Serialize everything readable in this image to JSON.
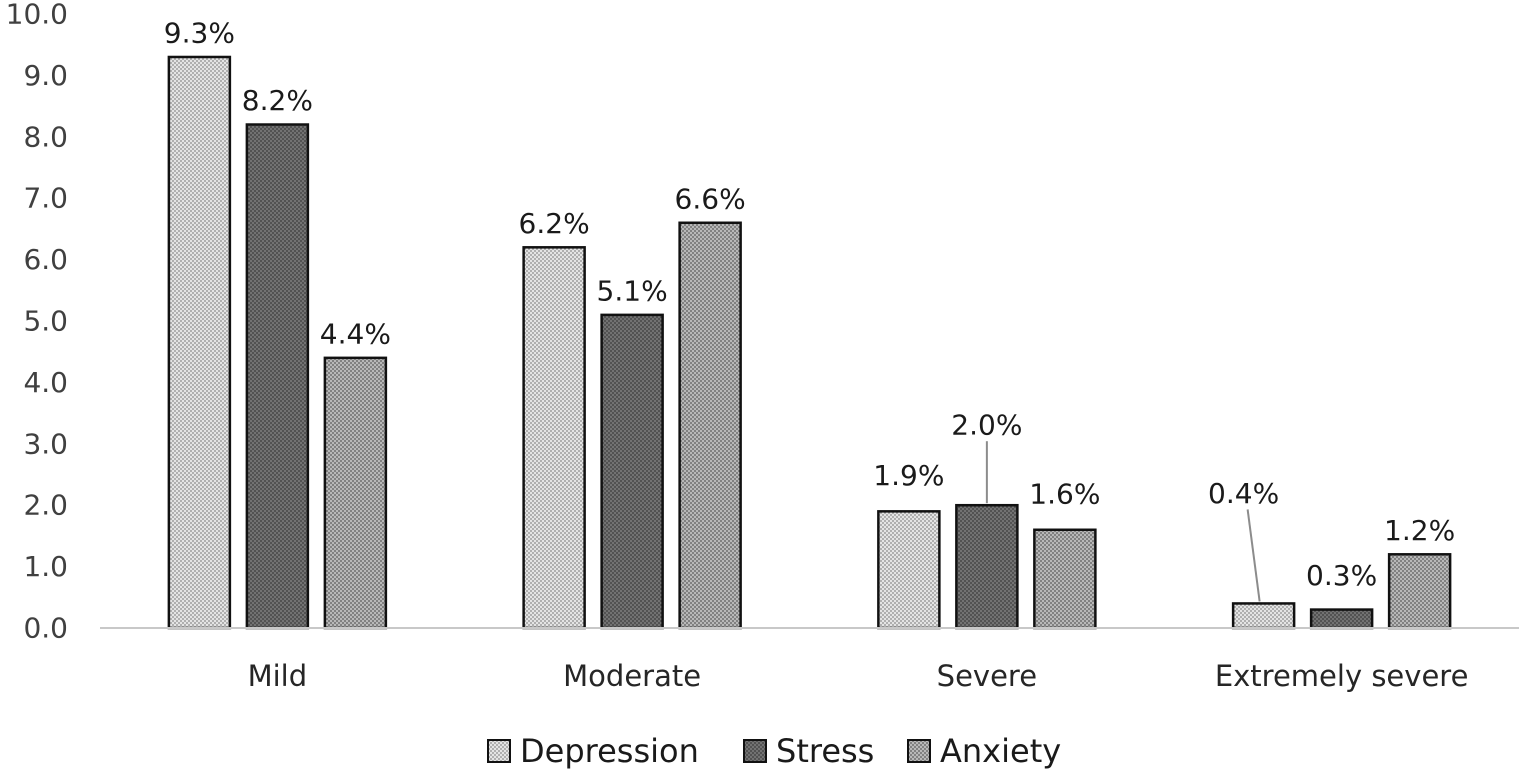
{
  "chart_data": {
    "type": "bar",
    "title": "",
    "xlabel": "",
    "ylabel": "",
    "ylim": [
      0,
      10
    ],
    "yticks": [
      "0.0",
      "1.0",
      "2.0",
      "3.0",
      "4.0",
      "5.0",
      "6.0",
      "7.0",
      "8.0",
      "9.0",
      "10.0"
    ],
    "categories": [
      "Mild",
      "Moderate",
      "Severe",
      "Extremely severe"
    ],
    "series": [
      {
        "name": "Depression",
        "values": [
          9.3,
          6.2,
          1.9,
          0.4
        ],
        "labels": [
          "9.3%",
          "6.2%",
          "1.9%",
          "0.4%"
        ],
        "pattern": "light-dots"
      },
      {
        "name": "Stress",
        "values": [
          8.2,
          5.1,
          2.0,
          0.3
        ],
        "labels": [
          "8.2%",
          "5.1%",
          "2.0%",
          "0.3%"
        ],
        "pattern": "dark-dots"
      },
      {
        "name": "Anxiety",
        "values": [
          4.4,
          6.6,
          1.6,
          1.2
        ],
        "labels": [
          "4.4%",
          "6.6%",
          "1.6%",
          "1.2%"
        ],
        "pattern": "medium-dots"
      }
    ],
    "grid": false,
    "legend_position": "bottom"
  }
}
